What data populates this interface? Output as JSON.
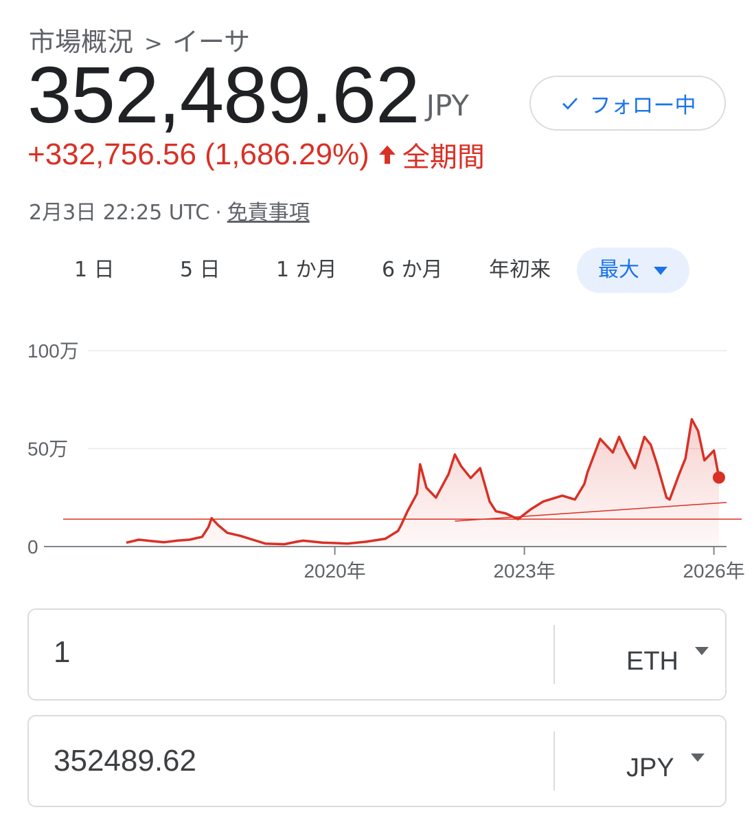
{
  "breadcrumb": {
    "parent": "市場概況",
    "separator": ">",
    "current": "イーサ"
  },
  "quote": {
    "price": "352,489.62",
    "currency": "JPY",
    "change": "+332,756.56 (1,686.29%)",
    "period": "全期間",
    "timestamp": "2月3日 22:25 UTC",
    "separator": "·",
    "disclaimer": "免責事項"
  },
  "follow_button": {
    "label": "フォロー中",
    "icon": "check-icon"
  },
  "range_tabs": [
    {
      "label": "1 日",
      "active": false
    },
    {
      "label": "5 日",
      "active": false
    },
    {
      "label": "1 か月",
      "active": false
    },
    {
      "label": "6 か月",
      "active": false
    },
    {
      "label": "年初来",
      "active": false
    },
    {
      "label": "最大",
      "active": true
    }
  ],
  "colors": {
    "accent": "#1a73e8",
    "negative_line": "#d93025",
    "grid": "#e8eaed",
    "text_secondary": "#5f6368"
  },
  "chart_data": {
    "type": "line",
    "y_tick_labels": [
      "0",
      "50万",
      "100万"
    ],
    "y_ticks": [
      0,
      500000,
      1000000
    ],
    "ylim": [
      0,
      1000000
    ],
    "x_tick_labels": [
      "2020年",
      "2023年",
      "2026年"
    ],
    "x_ticks": [
      2020.0,
      2023.0,
      2026.0
    ],
    "xlim": [
      2015.7,
      2026.2
    ],
    "grid": true,
    "reference_line_value": 140000,
    "trend_line": [
      [
        2021.9,
        130000
      ],
      [
        2026.2,
        225000
      ]
    ],
    "series": [
      {
        "points": [
          [
            2016.7,
            20000
          ],
          [
            2016.9,
            35000
          ],
          [
            2017.1,
            28000
          ],
          [
            2017.3,
            22000
          ],
          [
            2017.5,
            30000
          ],
          [
            2017.7,
            35000
          ],
          [
            2017.9,
            50000
          ],
          [
            2018.0,
            100000
          ],
          [
            2018.05,
            145000
          ],
          [
            2018.15,
            110000
          ],
          [
            2018.3,
            70000
          ],
          [
            2018.5,
            55000
          ],
          [
            2018.7,
            35000
          ],
          [
            2018.9,
            15000
          ],
          [
            2019.2,
            12000
          ],
          [
            2019.4,
            25000
          ],
          [
            2019.5,
            30000
          ],
          [
            2019.8,
            20000
          ],
          [
            2020.0,
            18000
          ],
          [
            2020.2,
            15000
          ],
          [
            2020.5,
            25000
          ],
          [
            2020.8,
            40000
          ],
          [
            2021.0,
            80000
          ],
          [
            2021.05,
            110000
          ],
          [
            2021.15,
            180000
          ],
          [
            2021.3,
            270000
          ],
          [
            2021.35,
            420000
          ],
          [
            2021.45,
            300000
          ],
          [
            2021.6,
            250000
          ],
          [
            2021.8,
            370000
          ],
          [
            2021.9,
            470000
          ],
          [
            2022.0,
            410000
          ],
          [
            2022.15,
            350000
          ],
          [
            2022.3,
            400000
          ],
          [
            2022.45,
            230000
          ],
          [
            2022.55,
            180000
          ],
          [
            2022.7,
            170000
          ],
          [
            2022.9,
            140000
          ],
          [
            2023.1,
            190000
          ],
          [
            2023.3,
            230000
          ],
          [
            2023.6,
            260000
          ],
          [
            2023.8,
            240000
          ],
          [
            2023.95,
            320000
          ],
          [
            2024.0,
            380000
          ],
          [
            2024.2,
            550000
          ],
          [
            2024.4,
            480000
          ],
          [
            2024.5,
            560000
          ],
          [
            2024.6,
            490000
          ],
          [
            2024.75,
            400000
          ],
          [
            2024.9,
            560000
          ],
          [
            2025.0,
            520000
          ],
          [
            2025.1,
            420000
          ],
          [
            2025.25,
            250000
          ],
          [
            2025.3,
            240000
          ],
          [
            2025.45,
            370000
          ],
          [
            2025.55,
            450000
          ],
          [
            2025.65,
            650000
          ],
          [
            2025.75,
            590000
          ],
          [
            2025.85,
            440000
          ],
          [
            2026.0,
            490000
          ],
          [
            2026.08,
            352490
          ]
        ]
      }
    ]
  },
  "converter": {
    "crypto": {
      "value": "1",
      "currency": "ETH"
    },
    "fiat": {
      "value": "352489.62",
      "currency": "JPY"
    }
  }
}
